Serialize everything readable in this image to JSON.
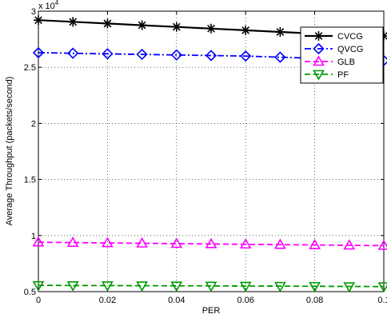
{
  "chart_data": {
    "type": "line",
    "title": "",
    "xlabel": "PER",
    "ylabel": "Average Throughput (packets/second)",
    "y_multiplier": "x 10^4",
    "xlim": [
      0,
      0.1
    ],
    "ylim": [
      0.5,
      3.0
    ],
    "x_ticks": [
      0,
      0.02,
      0.04,
      0.06,
      0.08,
      0.1
    ],
    "x_tick_labels": [
      "0",
      "0.02",
      "0.04",
      "0.06",
      "0.08",
      "0.1"
    ],
    "y_ticks": [
      0.5,
      1,
      1.5,
      2,
      2.5,
      3
    ],
    "y_tick_labels": [
      "0.5",
      "1",
      "1.5",
      "2",
      "2.5",
      "3"
    ],
    "grid": true,
    "legend_position": "top-right",
    "x": [
      0,
      0.01,
      0.02,
      0.03,
      0.04,
      0.05,
      0.06,
      0.07,
      0.08,
      0.09,
      0.1
    ],
    "series": [
      {
        "name": "CVCG",
        "color": "#000000",
        "line_style": "solid",
        "marker": "asterisk",
        "values": [
          2.92,
          2.905,
          2.89,
          2.875,
          2.86,
          2.845,
          2.83,
          2.815,
          2.8,
          2.79,
          2.78
        ]
      },
      {
        "name": "QVCG",
        "color": "#0000ff",
        "line_style": "dash-dot",
        "marker": "diamond",
        "values": [
          2.63,
          2.625,
          2.62,
          2.615,
          2.61,
          2.605,
          2.6,
          2.59,
          2.58,
          2.57,
          2.56
        ]
      },
      {
        "name": "GLB",
        "color": "#ff00ff",
        "line_style": "dashed",
        "marker": "triangle-up",
        "values": [
          0.94,
          0.937,
          0.934,
          0.931,
          0.928,
          0.925,
          0.922,
          0.919,
          0.916,
          0.913,
          0.91
        ]
      },
      {
        "name": "PF",
        "color": "#009900",
        "line_style": "dashed",
        "marker": "triangle-down",
        "values": [
          0.556,
          0.555,
          0.554,
          0.553,
          0.552,
          0.551,
          0.55,
          0.549,
          0.548,
          0.546,
          0.545
        ]
      }
    ]
  }
}
